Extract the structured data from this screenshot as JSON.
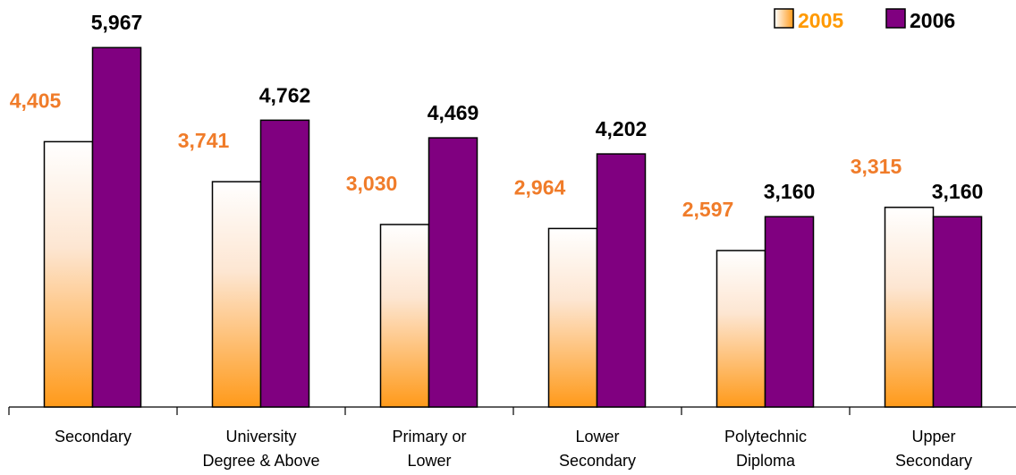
{
  "chart_data": {
    "type": "bar",
    "categories": [
      [
        "Secondary"
      ],
      [
        "University",
        "Degree & Above"
      ],
      [
        "Primary or",
        "Lower"
      ],
      [
        "Lower",
        "Secondary"
      ],
      [
        "Polytechnic",
        "Diploma"
      ],
      [
        "Upper",
        "Secondary"
      ]
    ],
    "series": [
      {
        "name": "2005",
        "values": [
          4405,
          3741,
          3030,
          2964,
          2597,
          3315
        ],
        "labels": [
          "4,405",
          "3,741",
          "3,030",
          "2,964",
          "2,597",
          "3,315"
        ],
        "label_color": "#f07c2a",
        "fill": "gradient-white-orange"
      },
      {
        "name": "2006",
        "values": [
          5967,
          4762,
          4469,
          4202,
          3160,
          3160
        ],
        "labels": [
          "5,967",
          "4,762",
          "4,469",
          "4,202",
          "3,160",
          "3,160"
        ],
        "label_color": "#000000",
        "fill": "#800080"
      }
    ],
    "ylim": [
      0,
      6000
    ],
    "grid": false,
    "legend_position": "top-right",
    "colors": {
      "orange": "#ff9a1a",
      "purple": "#800080",
      "legend_2005_text": "#ff9900"
    }
  }
}
